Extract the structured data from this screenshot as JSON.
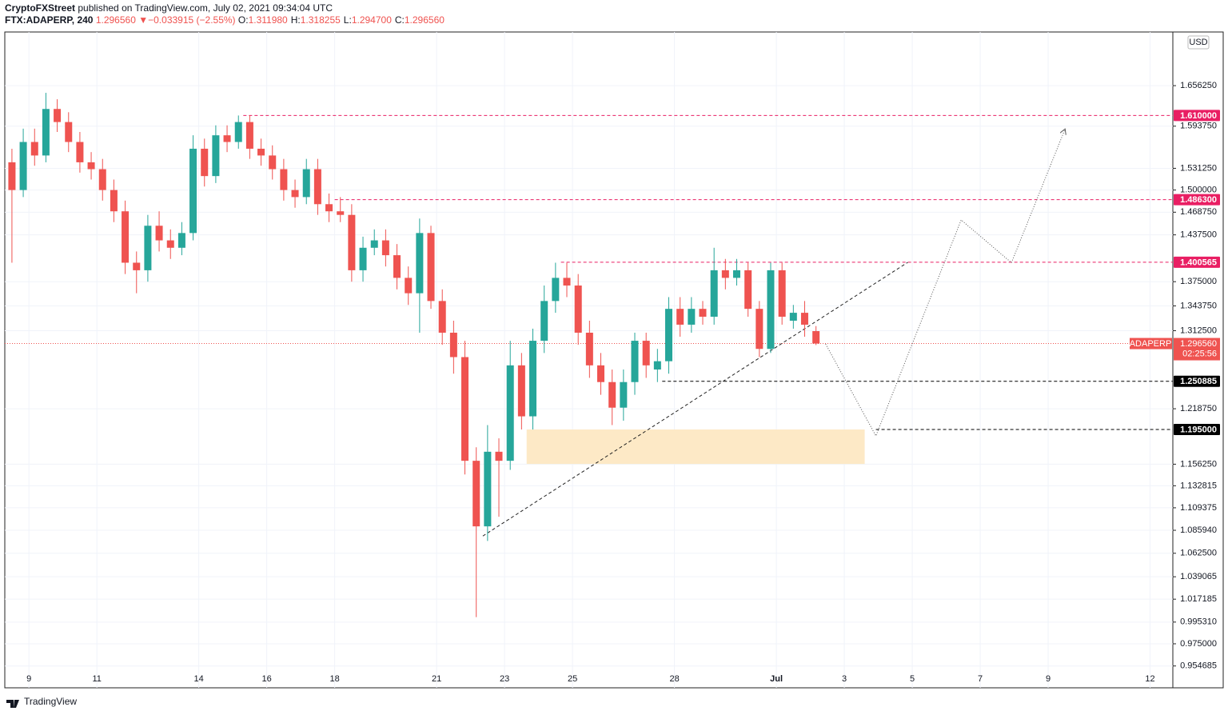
{
  "header": {
    "author": "CryptoFXStreet",
    "published": "published on TradingView.com, July 02, 2021 09:34:04 UTC",
    "symbol": "FTX:ADAPERP, 240",
    "last": "1.296560",
    "arrow": "▼",
    "change": "−0.033915 (−2.55%)",
    "ohlc": [
      {
        "key": "O:",
        "value": "1.311980"
      },
      {
        "key": "H:",
        "value": "1.318255"
      },
      {
        "key": "L:",
        "value": "1.294700"
      },
      {
        "key": "C:",
        "value": "1.296560"
      }
    ]
  },
  "footer": {
    "brand": "TradingView"
  },
  "chart_data": {
    "type": "candlestick",
    "currency": "USD",
    "log_scale": true,
    "grid": true,
    "x": [
      8.5,
      8.833,
      9.167,
      9.5,
      9.833,
      10.167,
      10.5,
      10.833,
      11.167,
      11.5,
      11.833,
      12.167,
      12.5,
      12.833,
      13.167,
      13.5,
      13.833,
      14.167,
      14.5,
      14.833,
      15.167,
      15.5,
      15.833,
      16.167,
      16.5,
      16.833,
      17.167,
      17.5,
      17.833,
      18.167,
      18.5,
      18.833,
      19.167,
      19.5,
      19.833,
      20.167,
      20.5,
      20.833,
      21.167,
      21.5,
      21.833,
      22.167,
      22.5,
      22.833,
      23.167,
      23.5,
      23.833,
      24.167,
      24.5,
      24.833,
      25.167,
      25.5,
      25.833,
      26.167,
      26.5,
      26.833,
      27.167,
      27.5,
      27.833,
      28.167,
      28.5,
      28.833,
      29.167,
      29.5,
      29.833,
      30.167,
      30.5,
      30.833,
      31.167,
      31.5,
      31.833,
      32.167
    ],
    "series": [
      {
        "name": "ADAPERP",
        "up_color": "#26a69a",
        "down_color": "#ef5350",
        "open": [
          1.54,
          1.5,
          1.57,
          1.55,
          1.62,
          1.6,
          1.57,
          1.54,
          1.53,
          1.5,
          1.47,
          1.4,
          1.39,
          1.45,
          1.43,
          1.42,
          1.44,
          1.56,
          1.52,
          1.58,
          1.57,
          1.6,
          1.56,
          1.55,
          1.53,
          1.5,
          1.49,
          1.53,
          1.48,
          1.47,
          1.465,
          1.39,
          1.42,
          1.43,
          1.41,
          1.38,
          1.36,
          1.44,
          1.35,
          1.31,
          1.28,
          1.16,
          1.09,
          1.17,
          1.16,
          1.27,
          1.21,
          1.3,
          1.35,
          1.38,
          1.37,
          1.31,
          1.27,
          1.25,
          1.22,
          1.25,
          1.3,
          1.265,
          1.275,
          1.34,
          1.32,
          1.34,
          1.33,
          1.39,
          1.38,
          1.39,
          1.34,
          1.29,
          1.39,
          1.325,
          1.335,
          1.31198
        ],
        "high": [
          1.56,
          1.59,
          1.59,
          1.645,
          1.635,
          1.615,
          1.585,
          1.555,
          1.545,
          1.515,
          1.485,
          1.415,
          1.465,
          1.47,
          1.445,
          1.455,
          1.58,
          1.575,
          1.595,
          1.595,
          1.61,
          1.61,
          1.575,
          1.565,
          1.545,
          1.515,
          1.545,
          1.545,
          1.495,
          1.49,
          1.48,
          1.435,
          1.445,
          1.445,
          1.425,
          1.395,
          1.46,
          1.45,
          1.365,
          1.325,
          1.3,
          1.175,
          1.2,
          1.185,
          1.3,
          1.285,
          1.315,
          1.37,
          1.4,
          1.4,
          1.385,
          1.325,
          1.285,
          1.265,
          1.265,
          1.31,
          1.31,
          1.29,
          1.355,
          1.355,
          1.355,
          1.35,
          1.42,
          1.405,
          1.405,
          1.4,
          1.35,
          1.4,
          1.4,
          1.345,
          1.35,
          1.318255
        ],
        "low": [
          1.4,
          1.49,
          1.535,
          1.54,
          1.585,
          1.555,
          1.525,
          1.515,
          1.485,
          1.455,
          1.385,
          1.36,
          1.375,
          1.415,
          1.405,
          1.41,
          1.43,
          1.505,
          1.51,
          1.555,
          1.56,
          1.545,
          1.535,
          1.515,
          1.485,
          1.475,
          1.48,
          1.465,
          1.455,
          1.455,
          1.375,
          1.375,
          1.41,
          1.395,
          1.365,
          1.345,
          1.31,
          1.34,
          1.295,
          1.26,
          1.145,
          1.0,
          1.075,
          1.1,
          1.15,
          1.195,
          1.195,
          1.285,
          1.335,
          1.355,
          1.295,
          1.255,
          1.235,
          1.2,
          1.205,
          1.235,
          1.255,
          1.25,
          1.26,
          1.305,
          1.31,
          1.32,
          1.32,
          1.365,
          1.37,
          1.33,
          1.28,
          1.285,
          1.32,
          1.315,
          1.305,
          1.2947
        ],
        "close": [
          1.5,
          1.57,
          1.55,
          1.62,
          1.6,
          1.57,
          1.54,
          1.53,
          1.5,
          1.47,
          1.4,
          1.39,
          1.45,
          1.43,
          1.42,
          1.44,
          1.56,
          1.52,
          1.58,
          1.57,
          1.6,
          1.56,
          1.55,
          1.53,
          1.5,
          1.49,
          1.53,
          1.48,
          1.47,
          1.465,
          1.39,
          1.42,
          1.43,
          1.41,
          1.38,
          1.36,
          1.44,
          1.35,
          1.31,
          1.28,
          1.16,
          1.09,
          1.17,
          1.16,
          1.27,
          1.21,
          1.3,
          1.35,
          1.38,
          1.37,
          1.31,
          1.27,
          1.25,
          1.22,
          1.25,
          1.3,
          1.27,
          1.275,
          1.34,
          1.32,
          1.34,
          1.33,
          1.39,
          1.38,
          1.39,
          1.34,
          1.29,
          1.39,
          1.33,
          1.335,
          1.32,
          1.29656
        ]
      }
    ],
    "xlim": [
      8.29,
      42.67
    ],
    "xticks": [
      9,
      11,
      14,
      16,
      18,
      21,
      23,
      25,
      28,
      {
        "value": 31,
        "label": "Jul"
      },
      {
        "value": 33,
        "label": "3"
      },
      {
        "value": 35,
        "label": "5"
      },
      {
        "value": 37,
        "label": "7"
      },
      {
        "value": 39,
        "label": "9"
      },
      {
        "value": 42,
        "label": "12"
      }
    ],
    "ylim": [
      0.9351,
      1.7428
    ],
    "yticks": [
      {
        "value": 1.65625,
        "label": "1.656250"
      },
      {
        "value": 1.59375,
        "label": "1.593750"
      },
      {
        "value": 1.53125,
        "label": "1.531250"
      },
      {
        "value": 1.5,
        "label": "1.500000"
      },
      {
        "value": 1.46875,
        "label": "1.468750"
      },
      {
        "value": 1.4375,
        "label": "1.437500"
      },
      {
        "value": 1.375,
        "label": "1.375000"
      },
      {
        "value": 1.34375,
        "label": "1.343750"
      },
      {
        "value": 1.3125,
        "label": "1.312500"
      },
      {
        "value": 1.21875,
        "label": "1.218750"
      },
      {
        "value": 1.15625,
        "label": "1.156250"
      },
      {
        "value": 1.132815,
        "label": "1.132815"
      },
      {
        "value": 1.109375,
        "label": "1.109375"
      },
      {
        "value": 1.08594,
        "label": "1.085940"
      },
      {
        "value": 1.0625,
        "label": "1.062500"
      },
      {
        "value": 1.039065,
        "label": "1.039065"
      },
      {
        "value": 1.017185,
        "label": "1.017185"
      },
      {
        "value": 0.99531,
        "label": "0.995310"
      },
      {
        "value": 0.975,
        "label": "0.975000"
      },
      {
        "value": 0.954685,
        "label": "0.954685"
      }
    ],
    "levels": [
      {
        "value": 1.61,
        "label": "1.610000",
        "from": 15.31,
        "color": "#e91e63"
      },
      {
        "value": 1.4863,
        "label": "1.486300",
        "from": 18.0,
        "color": "#e91e63"
      },
      {
        "value": 1.400565,
        "label": "1.400565",
        "from": 24.66,
        "color": "#e91e63"
      },
      {
        "value": 1.250885,
        "label": "1.250885",
        "from": 27.64,
        "color": "#000000"
      },
      {
        "value": 1.195,
        "label": "1.195000",
        "from": 33.93,
        "color": "#000000"
      }
    ],
    "last_price": {
      "name": "ADAPERP",
      "value": 1.29656,
      "label": "1.296560",
      "countdown": "02:25:56",
      "color": "#ef5350"
    },
    "trendline": {
      "x": [
        22.36,
        34.87
      ],
      "y": [
        1.08,
        1.4005
      ]
    },
    "zone": {
      "x": [
        23.65,
        33.6
      ],
      "y": [
        1.1565,
        1.195
      ],
      "color": "#fde9c6"
    },
    "projection": {
      "x": [
        32.45,
        33.93,
        36.44,
        37.92,
        39.49
      ],
      "y": [
        1.296,
        1.1877,
        1.458,
        1.4,
        1.5885
      ]
    }
  }
}
